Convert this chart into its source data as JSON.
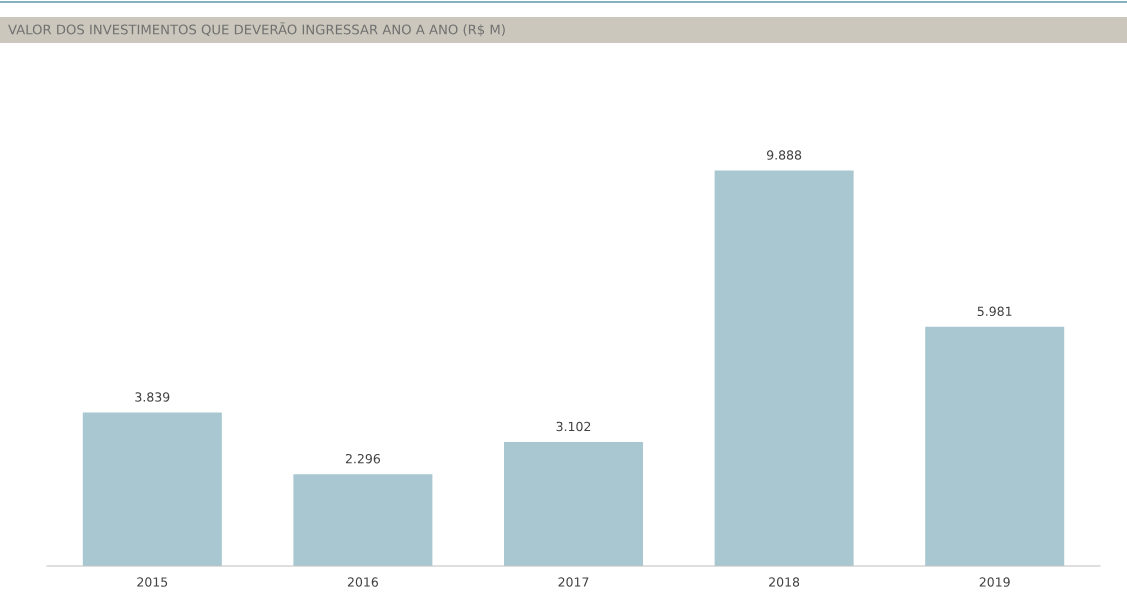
{
  "chart_data": {
    "type": "bar",
    "title": "VALOR DOS INVESTIMENTOS QUE DEVERÃO INGRESSAR ANO A ANO (R$ M)",
    "categories": [
      "2015",
      "2016",
      "2017",
      "2018",
      "2019"
    ],
    "values": [
      3839,
      2296,
      3102,
      9888,
      5981
    ],
    "value_labels": [
      "3.839",
      "2.296",
      "3.102",
      "9.888",
      "5.981"
    ],
    "color": "#a8c7d1",
    "grid": false,
    "legend": false
  }
}
